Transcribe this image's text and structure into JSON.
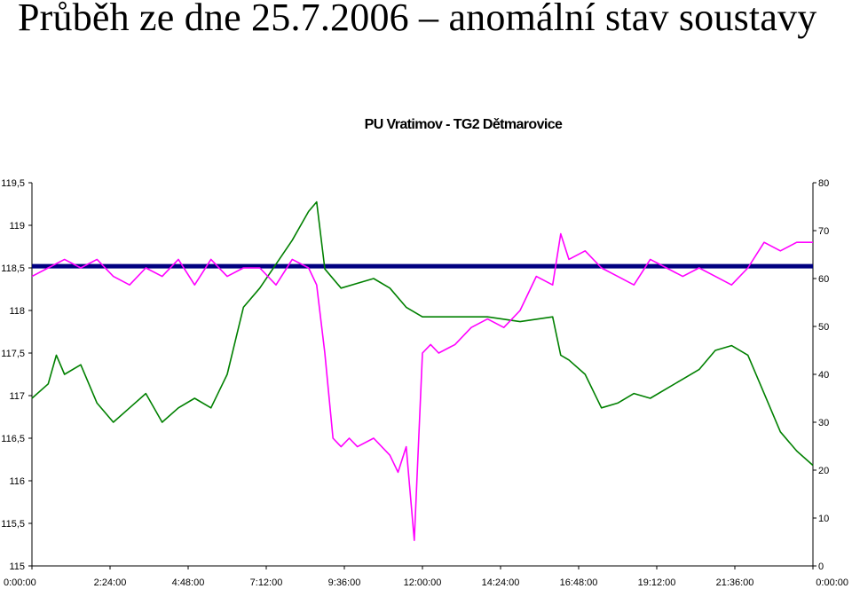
{
  "page": {
    "title": "Průběh ze dne 25.7.2006 – anomální stav soustavy"
  },
  "chart_data": {
    "type": "line",
    "title": "PU Vratimov - TG2 Dětmarovice",
    "xlabel": "",
    "ylabel": "",
    "y2label": "",
    "x_ticks": [
      "0:00:00",
      "2:24:00",
      "4:48:00",
      "7:12:00",
      "9:36:00",
      "12:00:00",
      "14:24:00",
      "16:48:00",
      "19:12:00",
      "21:36:00",
      "0:00:00"
    ],
    "x_range_hours": [
      0,
      24
    ],
    "ylim": [
      115,
      119.5
    ],
    "y_ticks": [
      "115",
      "115,5",
      "116",
      "116,5",
      "117",
      "117,5",
      "118",
      "118,5",
      "119",
      "119,5"
    ],
    "y2lim": [
      0,
      80
    ],
    "y2_ticks": [
      "0",
      "10",
      "20",
      "30",
      "40",
      "50",
      "60",
      "70",
      "80"
    ],
    "legend": "none",
    "grid": false,
    "series": [
      {
        "axis": "left",
        "color": "#ff00ff",
        "x_hours": [
          0.0,
          0.5,
          1.0,
          1.5,
          2.0,
          2.5,
          3.0,
          3.5,
          4.0,
          4.5,
          5.0,
          5.5,
          6.0,
          6.5,
          7.0,
          7.5,
          8.0,
          8.5,
          8.75,
          9.0,
          9.25,
          9.5,
          9.75,
          10.0,
          10.5,
          11.0,
          11.25,
          11.5,
          11.75,
          12.0,
          12.25,
          12.5,
          13.0,
          13.5,
          14.0,
          14.5,
          15.0,
          15.5,
          16.0,
          16.25,
          16.5,
          17.0,
          17.5,
          18.0,
          18.5,
          19.0,
          19.5,
          20.0,
          20.5,
          21.0,
          21.5,
          22.0,
          22.5,
          23.0,
          23.5,
          24.0
        ],
        "values": [
          118.4,
          118.5,
          118.6,
          118.5,
          118.6,
          118.4,
          118.3,
          118.5,
          118.4,
          118.6,
          118.3,
          118.6,
          118.4,
          118.5,
          118.5,
          118.3,
          118.6,
          118.5,
          118.3,
          117.5,
          116.5,
          116.4,
          116.5,
          116.4,
          116.5,
          116.3,
          116.1,
          116.4,
          115.3,
          117.5,
          117.6,
          117.5,
          117.6,
          117.8,
          117.9,
          117.8,
          118.0,
          118.4,
          118.3,
          118.9,
          118.6,
          118.7,
          118.5,
          118.4,
          118.3,
          118.6,
          118.5,
          118.4,
          118.5,
          118.4,
          118.3,
          118.5,
          118.8,
          118.7,
          118.8,
          118.8
        ]
      },
      {
        "axis": "right",
        "color": "#008000",
        "x_hours": [
          0.0,
          0.5,
          0.75,
          1.0,
          1.5,
          2.0,
          2.5,
          3.0,
          3.5,
          4.0,
          4.5,
          5.0,
          5.5,
          6.0,
          6.5,
          7.0,
          7.5,
          8.0,
          8.5,
          8.75,
          9.0,
          9.5,
          10.0,
          10.5,
          11.0,
          11.5,
          12.0,
          13.0,
          14.0,
          15.0,
          16.0,
          16.25,
          16.5,
          17.0,
          17.5,
          18.0,
          18.5,
          19.0,
          19.5,
          20.0,
          20.5,
          21.0,
          21.5,
          22.0,
          22.5,
          23.0,
          23.5,
          24.0
        ],
        "values": [
          35,
          38,
          44,
          40,
          42,
          34,
          30,
          33,
          36,
          30,
          33,
          35,
          33,
          40,
          54,
          58,
          63,
          68,
          74,
          76,
          62,
          58,
          59,
          60,
          58,
          54,
          52,
          52,
          52,
          51,
          52,
          44,
          43,
          40,
          33,
          34,
          36,
          35,
          37,
          39,
          41,
          45,
          46,
          44,
          36,
          28,
          24,
          21
        ]
      }
    ],
    "reference_lines": [
      {
        "axis": "left",
        "value": 118.52,
        "color": "#000080"
      }
    ]
  }
}
